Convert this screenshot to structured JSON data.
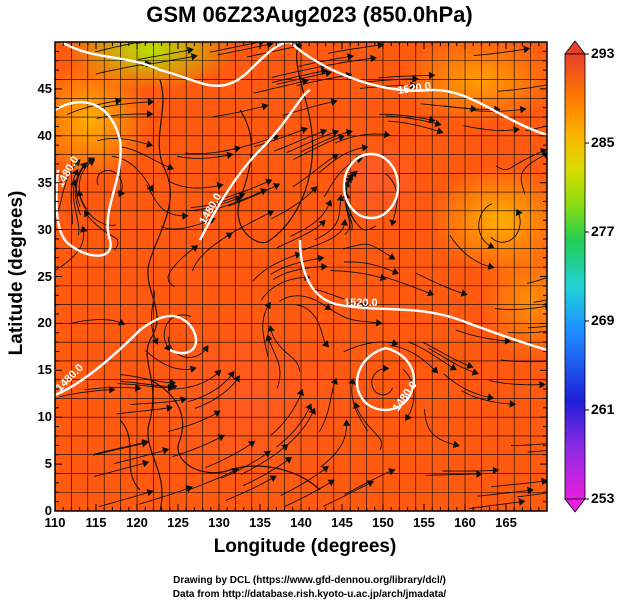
{
  "figure": {
    "title": "GSM 06Z23Aug2023 (850.0hPa)",
    "xlabel": "Longitude (degrees)",
    "ylabel": "Latitude (degrees)",
    "credit_line1": "Drawing by DCL (https://www.gfd-dennou.org/library/dcl/)",
    "credit_line2": "Data from http://database.rish.kyoto-u.ac.jp/arch/jmadata/"
  },
  "chart_data": {
    "type": "heatmap",
    "xlim": [
      110,
      170
    ],
    "ylim": [
      0,
      50
    ],
    "x_ticks": [
      "110",
      "115",
      "120",
      "125",
      "130",
      "135",
      "140",
      "145",
      "150",
      "155",
      "160",
      "165"
    ],
    "y_ticks": [
      "0",
      "5",
      "10",
      "15",
      "20",
      "25",
      "30",
      "35",
      "40",
      "45"
    ],
    "colorbar": {
      "min": 253,
      "max": 293,
      "ticks": [
        "253",
        "261",
        "269",
        "277",
        "285",
        "293"
      ],
      "colors": [
        "#e81ee0",
        "#8a2be2",
        "#1f1fd9",
        "#1e90ff",
        "#20d4d4",
        "#22cc55",
        "#88dd11",
        "#d8dd00",
        "#ffb300",
        "#ff7a00",
        "#ff4a1a",
        "#e8402a"
      ]
    },
    "contour_labels": [
      {
        "text": "1520.0",
        "lon": 147,
        "lat": 46
      },
      {
        "text": "1520.0",
        "lon": 144,
        "lat": 26
      },
      {
        "text": "1480.0",
        "lon": 113,
        "lat": 37
      },
      {
        "text": "1480.0",
        "lon": 129,
        "lat": 33
      },
      {
        "text": "1480.0",
        "lon": 112,
        "lat": 16
      },
      {
        "text": "1480.0",
        "lon": 153,
        "lat": 13
      }
    ],
    "grid": true,
    "overlays": [
      "temperature shading",
      "geopotential height contours",
      "streamlines",
      "coastlines"
    ]
  }
}
